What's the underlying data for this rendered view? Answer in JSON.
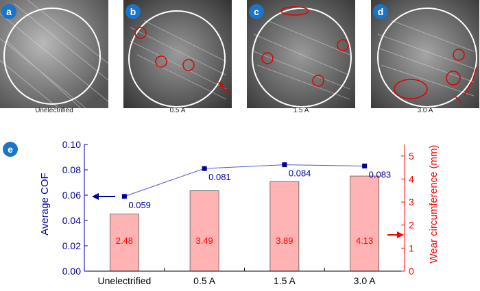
{
  "panels": [
    {
      "badge": "a",
      "label": "Unelectrified",
      "icon": "micrograph-worn-surface-unelectrified"
    },
    {
      "badge": "b",
      "label": "0.5 A",
      "icon": "micrograph-worn-surface-0.5a"
    },
    {
      "badge": "c",
      "label": "1.5 A",
      "icon": "micrograph-worn-surface-1.5a"
    },
    {
      "badge": "d",
      "label": "3.0 A",
      "icon": "micrograph-worn-surface-3.0a"
    }
  ],
  "chart_badge": "e",
  "colors": {
    "cof": "#000099",
    "wear": "#ff0000",
    "bar_fill": "#ffb3b3",
    "badge": "#1a74c8"
  },
  "chart_data": {
    "type": "bar+line",
    "categories": [
      "Unelectrified",
      "0.5 A",
      "1.5 A",
      "3.0 A"
    ],
    "series": [
      {
        "axis": "right",
        "kind": "bar",
        "values": [
          2.48,
          3.49,
          3.89,
          4.13
        ],
        "labels": [
          "2.48",
          "3.49",
          "3.89",
          "4.13"
        ]
      },
      {
        "axis": "left",
        "kind": "line",
        "values": [
          0.059,
          0.081,
          0.084,
          0.083
        ],
        "labels": [
          "0.059",
          "0.081",
          "0.084",
          "0.083"
        ]
      }
    ],
    "ylabel_left": "Average COF",
    "ylabel_right": "Wear circumference (mm)",
    "ylim_left": [
      0,
      0.1
    ],
    "ylim_right": [
      0,
      5.5
    ],
    "yticks_left": [
      "0.00",
      "0.02",
      "0.04",
      "0.06",
      "0.08",
      "0.10"
    ],
    "yticks_right": [
      "0",
      "1",
      "2",
      "3",
      "4",
      "5"
    ],
    "grid": false
  }
}
